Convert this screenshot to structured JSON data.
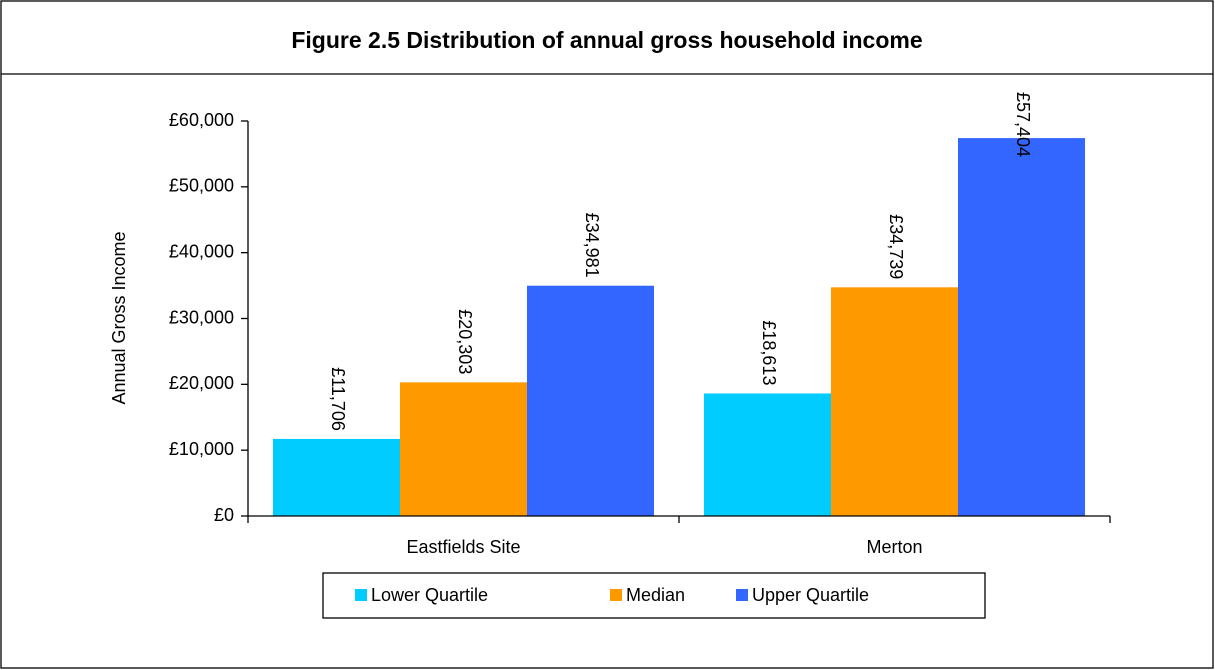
{
  "chart_data": {
    "type": "bar",
    "title": "Figure 2.5 Distribution of annual gross household income",
    "y_label": "Annual Gross Income",
    "categories": [
      "Eastfields Site",
      "Merton"
    ],
    "series": [
      {
        "name": "Lower Quartile",
        "color": "#00ccff",
        "values": [
          11706,
          18613
        ],
        "value_labels": [
          "£11,706",
          "£18,613"
        ]
      },
      {
        "name": "Median",
        "color": "#ff9900",
        "values": [
          20303,
          34739
        ],
        "value_labels": [
          "£20,303",
          "£34,739"
        ]
      },
      {
        "name": "Upper Quartile",
        "color": "#3366ff",
        "values": [
          34981,
          57404
        ],
        "value_labels": [
          "£34,981",
          "£57,404"
        ]
      }
    ],
    "ylim": [
      0,
      60000
    ],
    "yticks": [
      {
        "value": 0,
        "label": "£0"
      },
      {
        "value": 10000,
        "label": "£10,000"
      },
      {
        "value": 20000,
        "label": "£20,000"
      },
      {
        "value": 30000,
        "label": "£30,000"
      },
      {
        "value": 40000,
        "label": "£40,000"
      },
      {
        "value": 50000,
        "label": "£50,000"
      },
      {
        "value": 60000,
        "label": "£60,000"
      }
    ],
    "legend": "bottom"
  }
}
